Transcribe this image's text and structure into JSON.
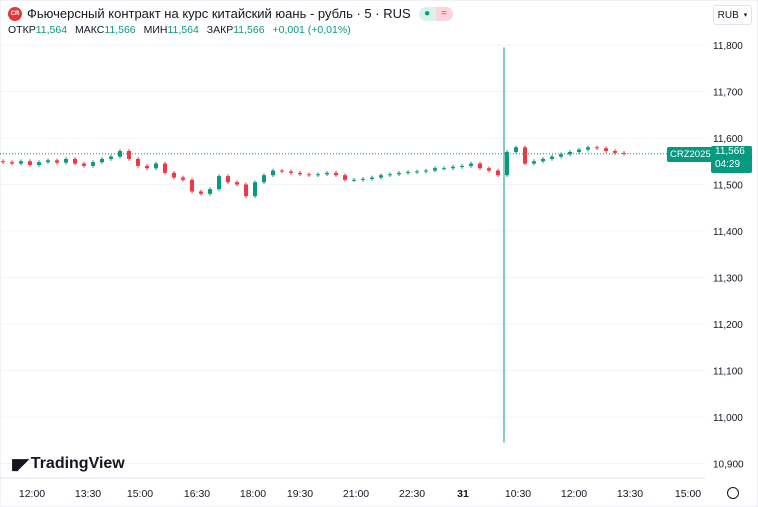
{
  "header": {
    "logo_text": "CR",
    "title": "Фьючерсный контракт на курс китайский юань - рубль · 5 · RUS",
    "status_dot": "●",
    "status_wave": "≈",
    "currency": "RUB"
  },
  "ohlc": {
    "open_label": "ОТКР",
    "open": "11,564",
    "high_label": "МАКС",
    "high": "11,566",
    "low_label": "МИН",
    "low": "11,564",
    "close_label": "ЗАКР",
    "close": "11,566",
    "change": "+0,001 (+0,01%)"
  },
  "last": {
    "symbol": "CRZ2025",
    "price": "11,566",
    "countdown": "04:29"
  },
  "branding": "TradingView",
  "colors": {
    "up": "#089981",
    "down": "#f23645",
    "grid": "#f0f3fa"
  },
  "chart_data": {
    "type": "candlestick",
    "ylim": [
      10.88,
      11.82
    ],
    "yticks": [
      "11,800",
      "11,700",
      "11,600",
      "11,500",
      "11,400",
      "11,300",
      "11,200",
      "11,100",
      "11,000",
      "10,900"
    ],
    "ytick_values": [
      11.8,
      11.7,
      11.6,
      11.5,
      11.4,
      11.3,
      11.2,
      11.1,
      11.0,
      10.9
    ],
    "xticks": [
      "12:00",
      "13:30",
      "15:00",
      "16:30",
      "18:00",
      "19:30",
      "21:00",
      "22:30",
      "31",
      "10:30",
      "12:00",
      "13:30",
      "15:00"
    ],
    "last_price": 11.566,
    "closes": [
      11.548,
      11.545,
      11.55,
      11.542,
      11.548,
      11.552,
      11.547,
      11.555,
      11.545,
      11.54,
      11.548,
      11.555,
      11.56,
      11.572,
      11.555,
      11.54,
      11.535,
      11.545,
      11.525,
      11.515,
      11.51,
      11.485,
      11.48,
      11.49,
      11.518,
      11.505,
      11.5,
      11.475,
      11.505,
      11.52,
      11.53,
      11.528,
      11.525,
      11.522,
      11.52,
      11.522,
      11.525,
      11.52,
      11.51,
      11.51,
      11.512,
      11.515,
      11.52,
      11.522,
      11.525,
      11.527,
      11.528,
      11.53,
      11.535,
      11.535,
      11.538,
      11.54,
      11.545,
      11.535,
      11.53,
      11.52,
      11.57,
      11.58,
      11.545,
      11.55,
      11.555,
      11.56,
      11.565,
      11.57,
      11.575,
      11.58,
      11.578,
      11.572,
      11.568,
      11.566
    ],
    "session_break_low": 10.945,
    "session_break_high": 11.795
  }
}
